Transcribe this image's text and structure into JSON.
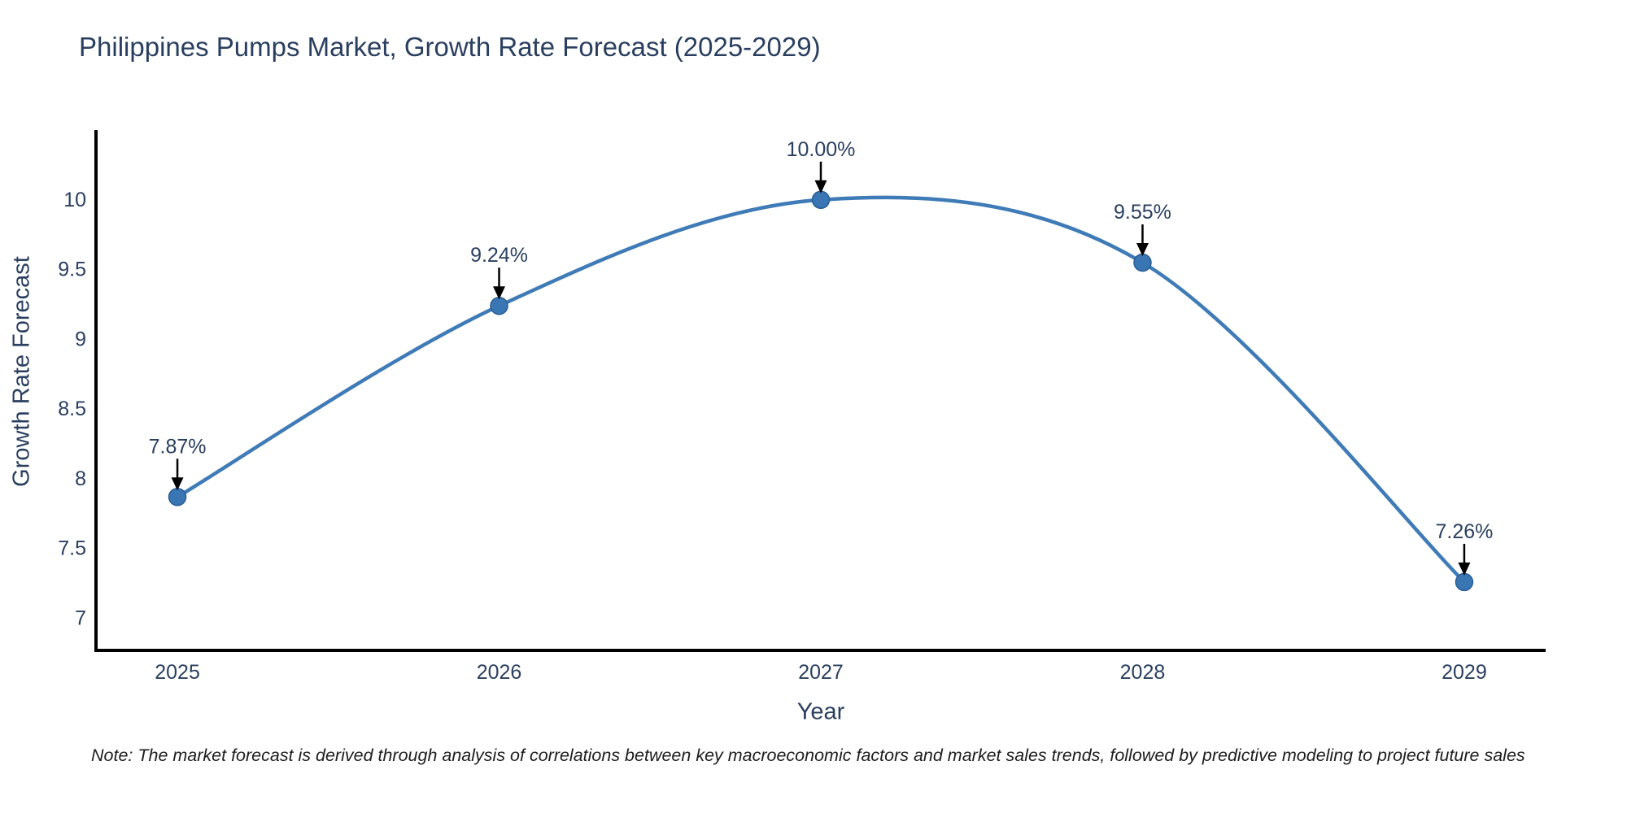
{
  "title": "Philippines Pumps Market, Growth Rate Forecast (2025-2029)",
  "note": "Note: The market forecast is derived through analysis of correlations between key macroeconomic factors and market sales trends, followed by predictive modeling to project future sales",
  "chart_data": {
    "type": "line",
    "title": "Philippines Pumps Market, Growth Rate Forecast (2025-2029)",
    "xlabel": "Year",
    "ylabel": "Growth Rate Forecast",
    "x": [
      2025,
      2026,
      2027,
      2028,
      2029
    ],
    "values": [
      7.87,
      9.24,
      10.0,
      9.55,
      7.26
    ],
    "point_labels": [
      "7.87%",
      "9.24%",
      "10.00%",
      "9.55%",
      "7.26%"
    ],
    "xticks": [
      2025,
      2026,
      2027,
      2028,
      2029
    ],
    "yticks": [
      7,
      7.5,
      8,
      8.5,
      9,
      9.5,
      10
    ],
    "ytick_labels": [
      "7",
      "7.5",
      "8",
      "8.5",
      "9",
      "9.5",
      "10"
    ],
    "xlim": [
      2024.747,
      2029.253
    ],
    "ylim": [
      6.77,
      10.5
    ],
    "line_shape": "spline",
    "grid": false,
    "legend": false,
    "colors": {
      "line": "#3f7bb6",
      "marker": "#3a76b4",
      "marker_edge": "#2a5d93",
      "axis": "#000000",
      "text": "#2a3f5f",
      "arrow": "#000000",
      "note_text": "#1d1d1d"
    }
  }
}
